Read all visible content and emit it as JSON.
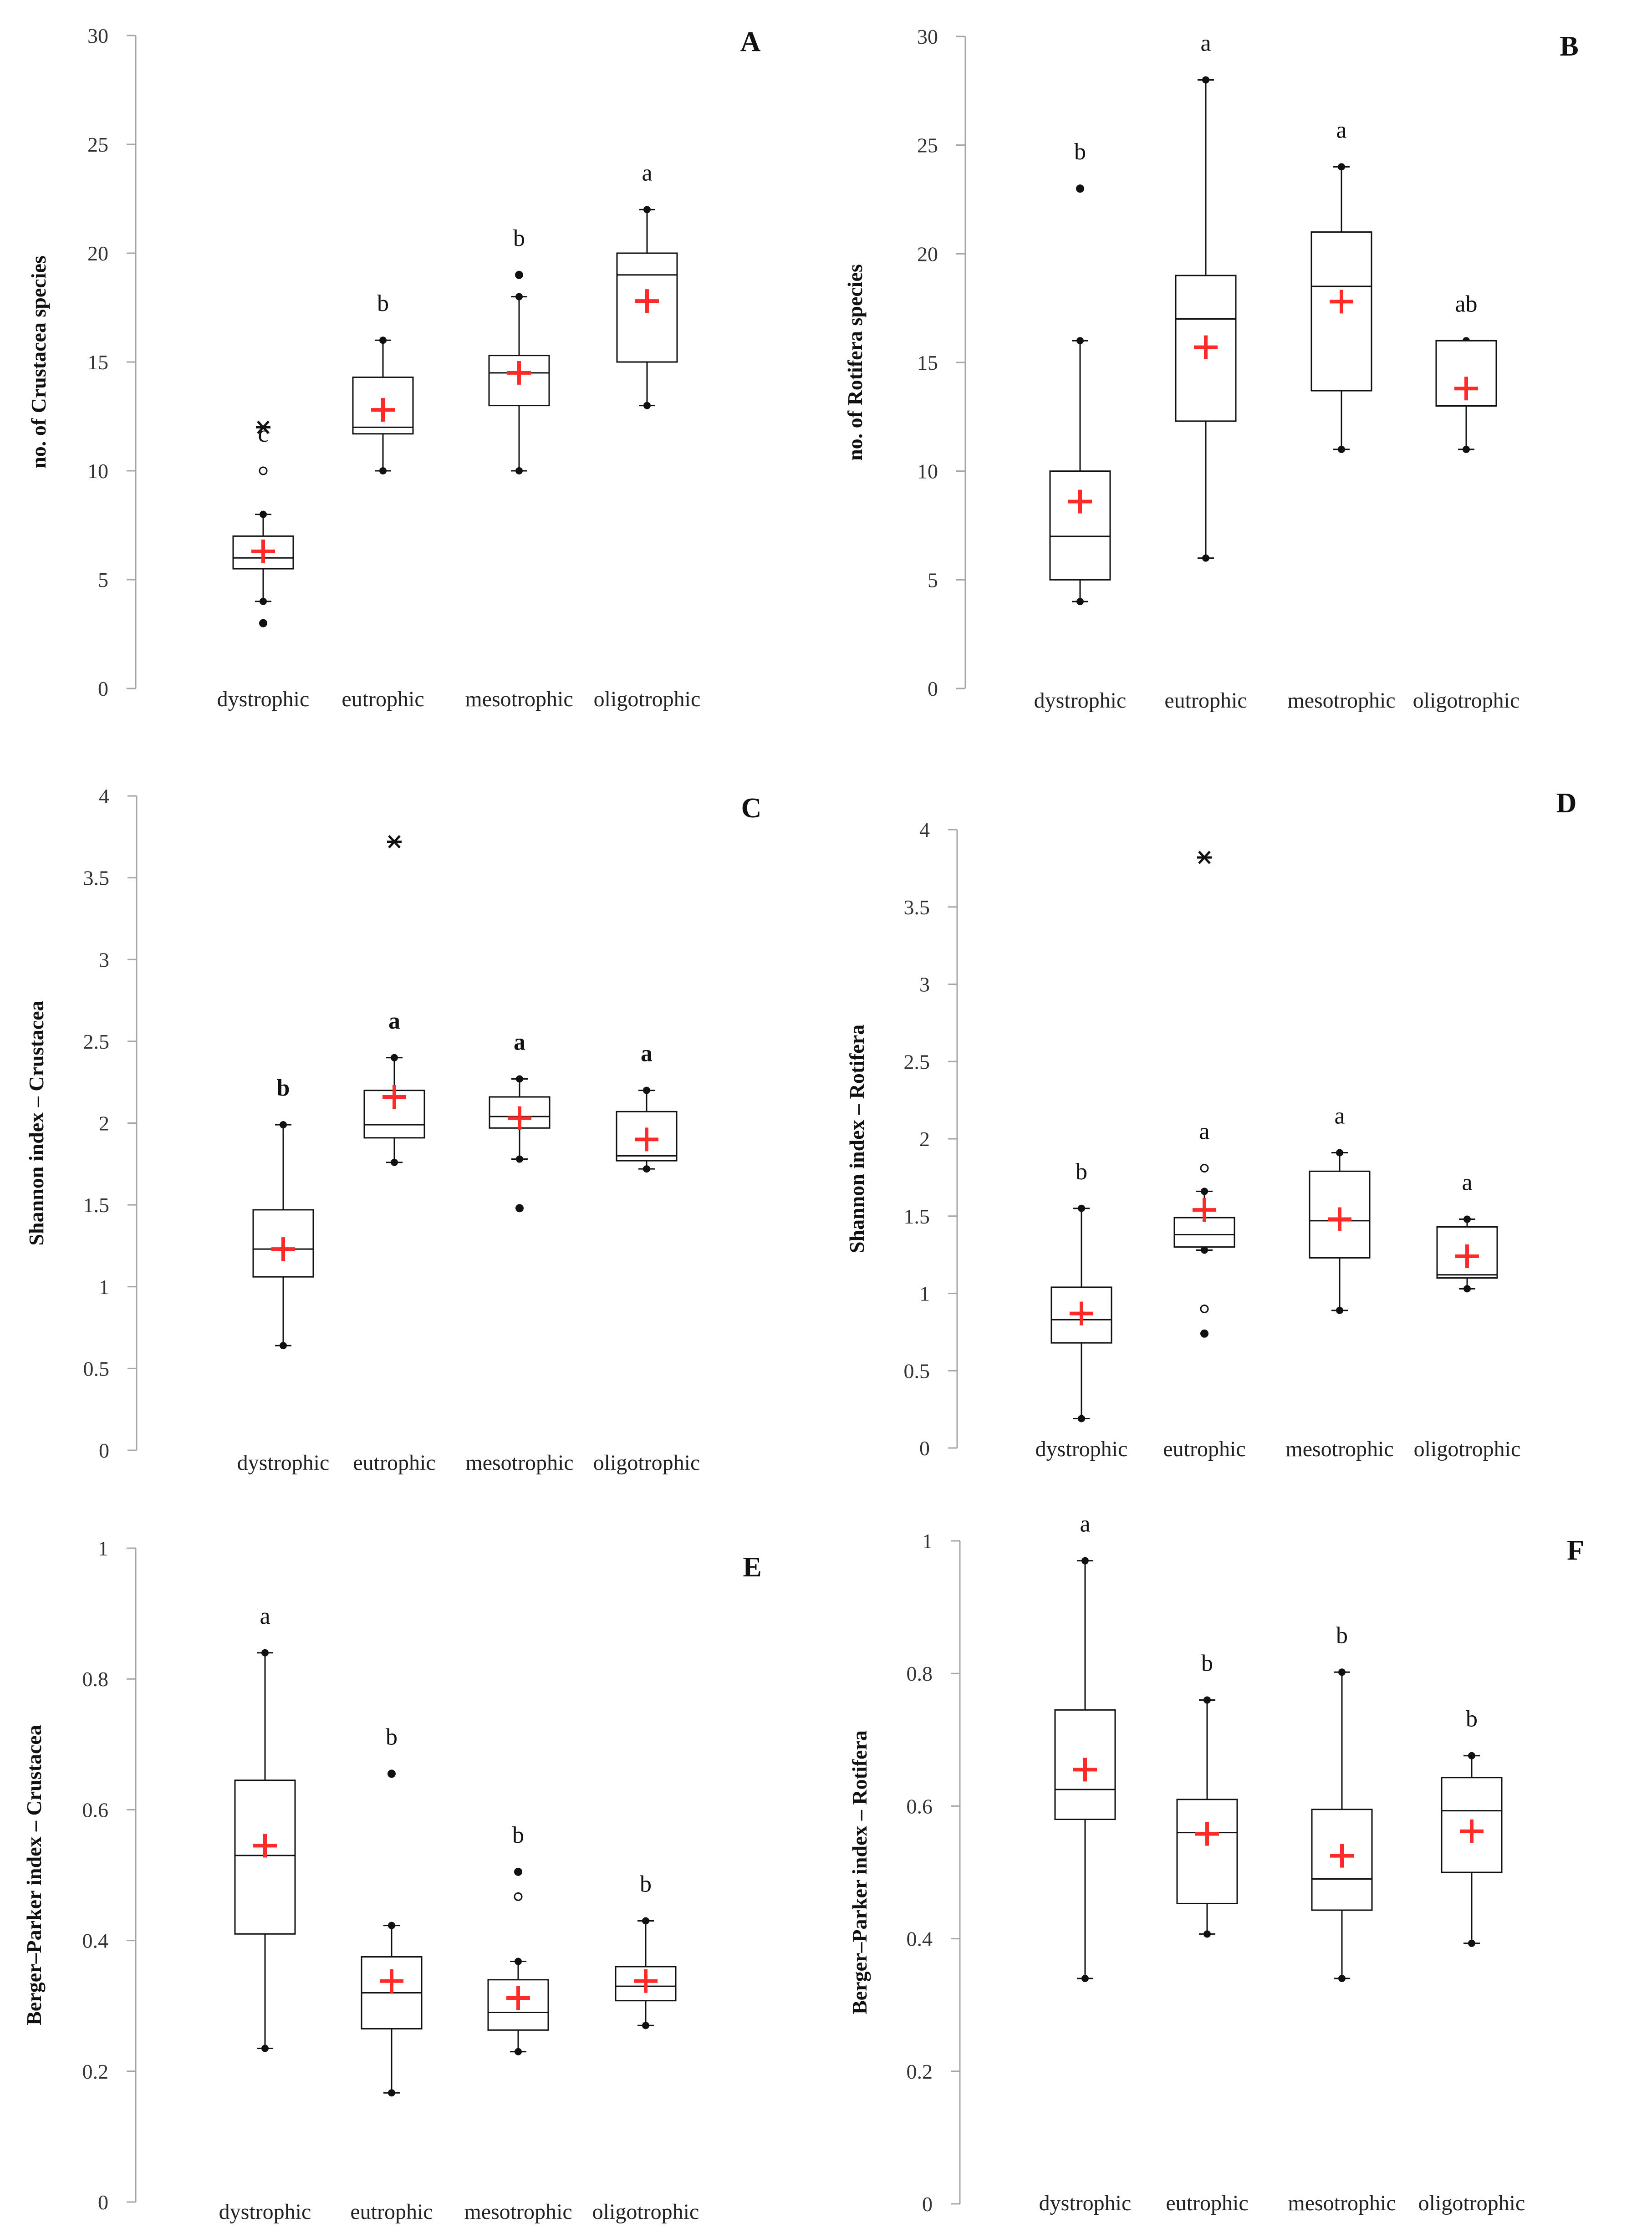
{
  "figure": {
    "description_note": "",
    "colors": {
      "axis": "#a6a6a6",
      "box": "#111111",
      "mean": "#ff2a2a",
      "outlier": "#111111"
    }
  },
  "chart_data": [
    {
      "panel": "A",
      "type": "boxplot",
      "ylabel": "no. of Crustacea species",
      "ylim": [
        0,
        30
      ],
      "yticks": [
        0,
        5,
        10,
        15,
        20,
        25,
        30
      ],
      "ytick_labels": [
        "0",
        "5",
        "10",
        "15",
        "20",
        "25",
        "30"
      ],
      "categories": [
        "dystrophic",
        "eutrophic",
        "mesotrophic",
        "oligotrophic"
      ],
      "boxes": [
        {
          "min": 4,
          "q1": 5.5,
          "median": 6,
          "q3": 7,
          "max": 8,
          "mean": 6.3,
          "outliers": [
            {
              "v": 12,
              "kind": "star"
            },
            {
              "v": 10,
              "kind": "open"
            },
            {
              "v": 3,
              "kind": "dot"
            }
          ],
          "sig": "c"
        },
        {
          "min": 10,
          "q1": 11.7,
          "median": 12,
          "q3": 14.3,
          "max": 16,
          "mean": 12.8,
          "outliers": [],
          "sig": "b"
        },
        {
          "min": 10,
          "q1": 13,
          "median": 14.5,
          "q3": 15.3,
          "max": 18,
          "mean": 14.5,
          "outliers": [
            {
              "v": 19,
              "kind": "dot"
            }
          ],
          "sig": "b"
        },
        {
          "min": 13,
          "q1": 15,
          "median": 19,
          "q3": 20,
          "max": 22,
          "mean": 17.8,
          "outliers": [],
          "sig": "a"
        }
      ],
      "sig_bold": false
    },
    {
      "panel": "B",
      "type": "boxplot",
      "ylabel": "no. of Rotifera species",
      "ylim": [
        0,
        30
      ],
      "yticks": [
        0,
        5,
        10,
        15,
        20,
        25,
        30
      ],
      "ytick_labels": [
        "0",
        "5",
        "10",
        "15",
        "20",
        "25",
        "30"
      ],
      "categories": [
        "dystrophic",
        "eutrophic",
        "mesotrophic",
        "oligotrophic"
      ],
      "boxes": [
        {
          "min": 4,
          "q1": 5,
          "median": 7,
          "q3": 10,
          "max": 16,
          "mean": 8.6,
          "outliers": [
            {
              "v": 23,
              "kind": "dot"
            }
          ],
          "sig": "b"
        },
        {
          "min": 6,
          "q1": 12.3,
          "median": 17,
          "q3": 19,
          "max": 28,
          "mean": 15.7,
          "outliers": [],
          "sig": "a"
        },
        {
          "min": 11,
          "q1": 13.7,
          "median": 18.5,
          "q3": 21,
          "max": 24,
          "mean": 17.8,
          "outliers": [],
          "sig": "a"
        },
        {
          "min": 11,
          "q1": 13,
          "median": 13,
          "q3": 16,
          "max": 16,
          "mean": 13.8,
          "outliers": [],
          "sig": "ab"
        }
      ],
      "sig_bold": false
    },
    {
      "panel": "C",
      "type": "boxplot",
      "ylabel": "Shannon index – Crustacea",
      "ylim": [
        0,
        4
      ],
      "yticks": [
        0,
        0.5,
        1,
        1.5,
        2,
        2.5,
        3,
        3.5,
        4
      ],
      "ytick_labels": [
        "0",
        "0.5",
        "1",
        "1.5",
        "2",
        "2.5",
        "3",
        "3.5",
        "4"
      ],
      "categories": [
        "dystrophic",
        "eutrophic",
        "mesotrophic",
        "oligotrophic"
      ],
      "boxes": [
        {
          "min": 0.64,
          "q1": 1.06,
          "median": 1.23,
          "q3": 1.47,
          "max": 1.99,
          "mean": 1.23,
          "outliers": [],
          "sig": "b"
        },
        {
          "min": 1.76,
          "q1": 1.91,
          "median": 1.99,
          "q3": 2.2,
          "max": 2.4,
          "mean": 2.16,
          "outliers": [
            {
              "v": 3.72,
              "kind": "star"
            }
          ],
          "sig": "a"
        },
        {
          "min": 1.78,
          "q1": 1.97,
          "median": 2.04,
          "q3": 2.16,
          "max": 2.27,
          "mean": 2.03,
          "outliers": [
            {
              "v": 1.48,
              "kind": "dot"
            }
          ],
          "sig": "a"
        },
        {
          "min": 1.72,
          "q1": 1.77,
          "median": 1.8,
          "q3": 2.07,
          "max": 2.2,
          "mean": 1.9,
          "outliers": [],
          "sig": "a"
        }
      ],
      "sig_bold": true
    },
    {
      "panel": "D",
      "type": "boxplot",
      "ylabel": "Shannon index – Rotifera",
      "ylim": [
        0,
        4
      ],
      "yticks": [
        0,
        0.5,
        1,
        1.5,
        2,
        2.5,
        3,
        3.5,
        4
      ],
      "ytick_labels": [
        "0",
        "0.5",
        "1",
        "1.5",
        "2",
        "2.5",
        "3",
        "3.5",
        "4"
      ],
      "categories": [
        "dystrophic",
        "eutrophic",
        "mesotrophic",
        "oligotrophic"
      ],
      "boxes": [
        {
          "min": 0.19,
          "q1": 0.68,
          "median": 0.83,
          "q3": 1.04,
          "max": 1.55,
          "mean": 0.87,
          "outliers": [],
          "sig": "b"
        },
        {
          "min": 1.28,
          "q1": 1.3,
          "median": 1.38,
          "q3": 1.49,
          "max": 1.66,
          "mean": 1.54,
          "outliers": [
            {
              "v": 3.82,
              "kind": "star"
            },
            {
              "v": 1.81,
              "kind": "open"
            },
            {
              "v": 0.9,
              "kind": "open"
            },
            {
              "v": 0.74,
              "kind": "dot"
            }
          ],
          "sig": "a"
        },
        {
          "min": 0.89,
          "q1": 1.23,
          "median": 1.47,
          "q3": 1.79,
          "max": 1.91,
          "mean": 1.48,
          "outliers": [],
          "sig": "a"
        },
        {
          "min": 1.03,
          "q1": 1.1,
          "median": 1.12,
          "q3": 1.43,
          "max": 1.48,
          "mean": 1.24,
          "outliers": [],
          "sig": "a"
        }
      ],
      "sig_bold": false
    },
    {
      "panel": "E",
      "type": "boxplot",
      "ylabel": "Berger–Parker index – Crustacea",
      "ylim": [
        0,
        1
      ],
      "yticks": [
        0,
        0.2,
        0.4,
        0.6,
        0.8,
        1
      ],
      "ytick_labels": [
        "0",
        "0.2",
        "0.4",
        "0.6",
        "0.8",
        "1"
      ],
      "categories": [
        "dystrophic",
        "eutrophic",
        "mesotrophic",
        "oligotrophic"
      ],
      "boxes": [
        {
          "min": 0.235,
          "q1": 0.41,
          "median": 0.53,
          "q3": 0.645,
          "max": 0.84,
          "mean": 0.545,
          "outliers": [],
          "sig": "a"
        },
        {
          "min": 0.167,
          "q1": 0.265,
          "median": 0.32,
          "q3": 0.375,
          "max": 0.423,
          "mean": 0.338,
          "outliers": [
            {
              "v": 0.655,
              "kind": "dot"
            }
          ],
          "sig": "b"
        },
        {
          "min": 0.23,
          "q1": 0.263,
          "median": 0.29,
          "q3": 0.34,
          "max": 0.368,
          "mean": 0.312,
          "outliers": [
            {
              "v": 0.505,
              "kind": "dot"
            },
            {
              "v": 0.467,
              "kind": "open"
            }
          ],
          "sig": "b"
        },
        {
          "min": 0.27,
          "q1": 0.308,
          "median": 0.33,
          "q3": 0.36,
          "max": 0.43,
          "mean": 0.338,
          "outliers": [],
          "sig": "b"
        }
      ],
      "sig_bold": false
    },
    {
      "panel": "F",
      "type": "boxplot",
      "ylabel": "Berger–Parker index – Rotifera",
      "ylim": [
        0,
        1
      ],
      "yticks": [
        0,
        0.2,
        0.4,
        0.6,
        0.8,
        1
      ],
      "ytick_labels": [
        "0",
        "0.2",
        "0.4",
        "0.6",
        "0.8",
        "1"
      ],
      "categories": [
        "dystrophic",
        "eutrophic",
        "mesotrophic",
        "oligotrophic"
      ],
      "boxes": [
        {
          "min": 0.34,
          "q1": 0.58,
          "median": 0.625,
          "q3": 0.745,
          "max": 0.97,
          "mean": 0.655,
          "outliers": [],
          "sig": "a"
        },
        {
          "min": 0.407,
          "q1": 0.453,
          "median": 0.56,
          "q3": 0.61,
          "max": 0.76,
          "mean": 0.558,
          "outliers": [],
          "sig": "b"
        },
        {
          "min": 0.34,
          "q1": 0.443,
          "median": 0.49,
          "q3": 0.595,
          "max": 0.802,
          "mean": 0.525,
          "outliers": [],
          "sig": "b"
        },
        {
          "min": 0.393,
          "q1": 0.5,
          "median": 0.593,
          "q3": 0.643,
          "max": 0.676,
          "mean": 0.562,
          "outliers": [],
          "sig": "b"
        }
      ],
      "sig_bold": false
    }
  ]
}
